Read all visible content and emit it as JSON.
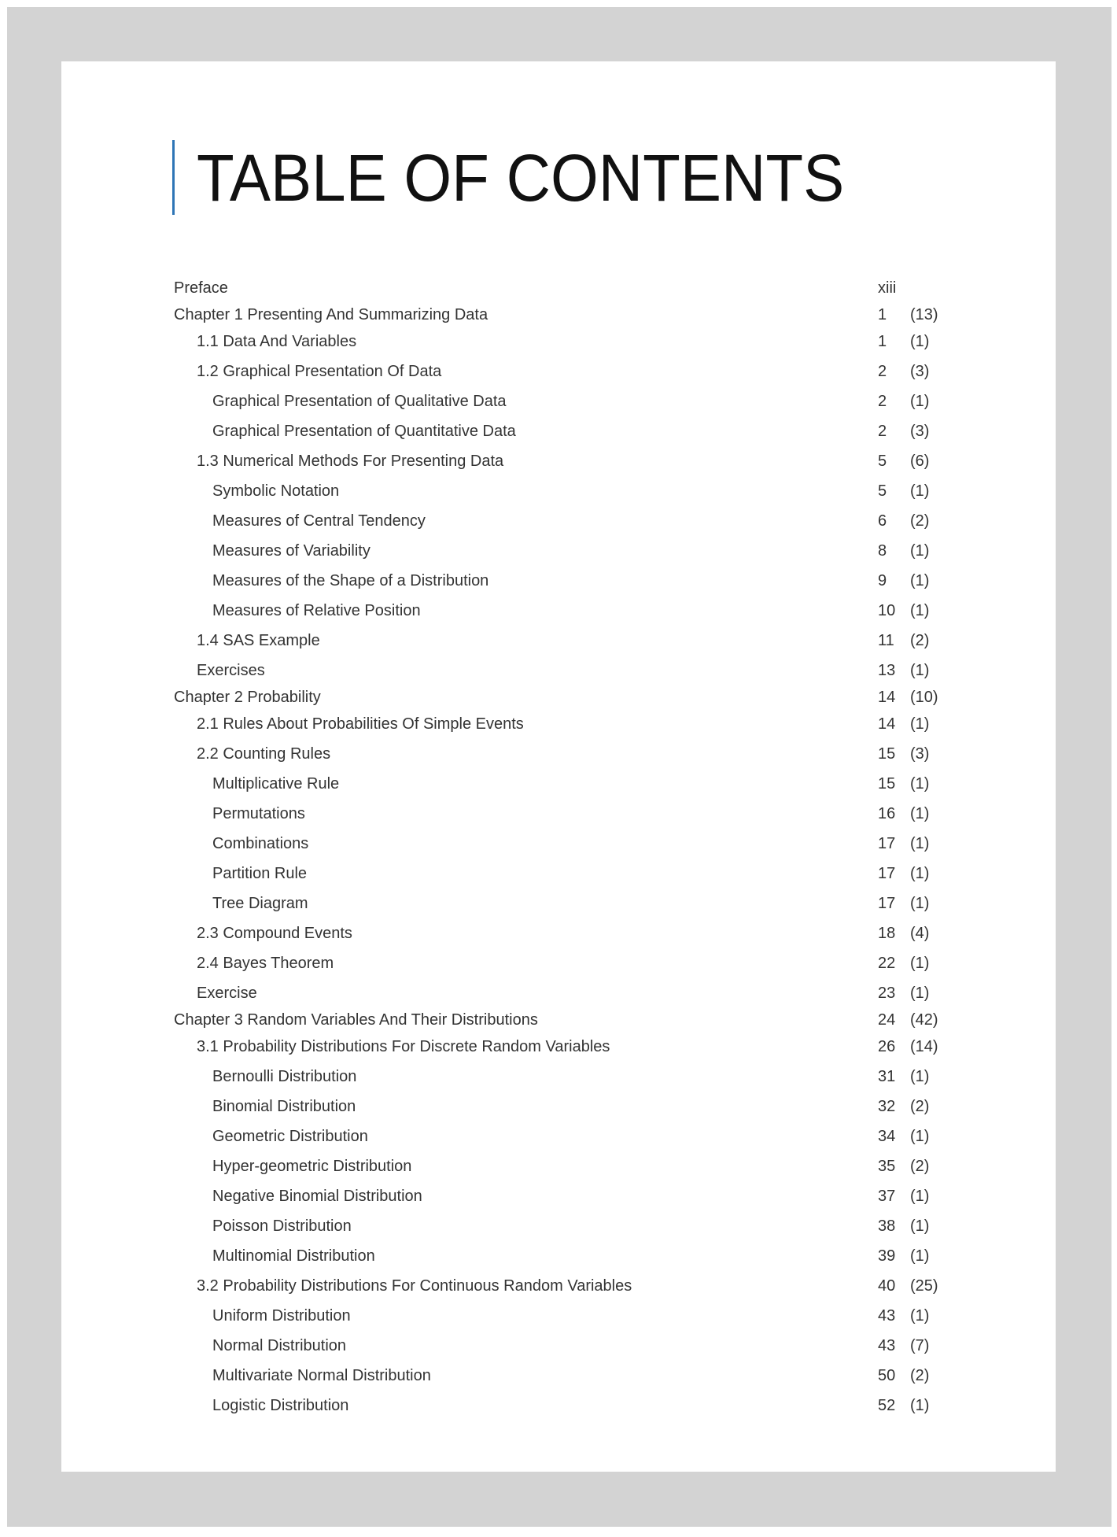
{
  "title": "TABLE OF CONTENTS",
  "accent_color": "#2e75b6",
  "entries": [
    {
      "label": "Preface",
      "page": "xiii",
      "count": "",
      "level": 0
    },
    {
      "label": "Chapter 1 Presenting And Summarizing Data",
      "page": "1",
      "count": "(13)",
      "level": 0
    },
    {
      "label": "1.1 Data And Variables",
      "page": "1",
      "count": "(1)",
      "level": 1
    },
    {
      "label": "1.2 Graphical Presentation Of Data",
      "page": "2",
      "count": "(3)",
      "level": 1
    },
    {
      "label": "Graphical Presentation of Qualitative Data",
      "page": "2",
      "count": "(1)",
      "level": 2
    },
    {
      "label": "Graphical Presentation of Quantitative Data",
      "page": "2",
      "count": "(3)",
      "level": 2
    },
    {
      "label": "1.3 Numerical Methods For Presenting Data",
      "page": "5",
      "count": "(6)",
      "level": 1
    },
    {
      "label": "Symbolic Notation",
      "page": "5",
      "count": "(1)",
      "level": 2
    },
    {
      "label": "Measures of Central Tendency",
      "page": "6",
      "count": "(2)",
      "level": 2
    },
    {
      "label": "Measures of Variability",
      "page": "8",
      "count": "(1)",
      "level": 2
    },
    {
      "label": "Measures of the Shape of a Distribution",
      "page": "9",
      "count": "(1)",
      "level": 2
    },
    {
      "label": "Measures of Relative Position",
      "page": "10",
      "count": "(1)",
      "level": 2
    },
    {
      "label": "1.4 SAS Example",
      "page": "11",
      "count": "(2)",
      "level": 1
    },
    {
      "label": "Exercises",
      "page": "13",
      "count": "(1)",
      "level": 1
    },
    {
      "label": "Chapter 2 Probability",
      "page": "14",
      "count": "(10)",
      "level": 0
    },
    {
      "label": "2.1 Rules About Probabilities Of Simple Events",
      "page": "14",
      "count": "(1)",
      "level": 1
    },
    {
      "label": "2.2 Counting Rules",
      "page": "15",
      "count": "(3)",
      "level": 1
    },
    {
      "label": "Multiplicative Rule",
      "page": "15",
      "count": "(1)",
      "level": 2
    },
    {
      "label": "Permutations",
      "page": "16",
      "count": "(1)",
      "level": 2
    },
    {
      "label": "Combinations",
      "page": "17",
      "count": "(1)",
      "level": 2
    },
    {
      "label": "Partition Rule",
      "page": "17",
      "count": "(1)",
      "level": 2
    },
    {
      "label": "Tree Diagram",
      "page": "17",
      "count": "(1)",
      "level": 2
    },
    {
      "label": "2.3 Compound Events",
      "page": "18",
      "count": "(4)",
      "level": 1
    },
    {
      "label": "2.4 Bayes Theorem",
      "page": "22",
      "count": "(1)",
      "level": 1
    },
    {
      "label": "Exercise",
      "page": "23",
      "count": "(1)",
      "level": 1
    },
    {
      "label": "Chapter 3 Random Variables And Their Distributions",
      "page": "24",
      "count": "(42)",
      "level": 0
    },
    {
      "label": "3.1 Probability Distributions For Discrete Random Variables",
      "page": "26",
      "count": "(14)",
      "level": 1
    },
    {
      "label": "Bernoulli Distribution",
      "page": "31",
      "count": "(1)",
      "level": 2
    },
    {
      "label": "Binomial Distribution",
      "page": "32",
      "count": "(2)",
      "level": 2
    },
    {
      "label": "Geometric Distribution",
      "page": "34",
      "count": "(1)",
      "level": 2
    },
    {
      "label": "Hyper-geometric Distribution",
      "page": "35",
      "count": "(2)",
      "level": 2
    },
    {
      "label": "Negative Binomial Distribution",
      "page": "37",
      "count": "(1)",
      "level": 2
    },
    {
      "label": "Poisson Distribution",
      "page": "38",
      "count": "(1)",
      "level": 2
    },
    {
      "label": "Multinomial Distribution",
      "page": "39",
      "count": "(1)",
      "level": 2
    },
    {
      "label": "3.2 Probability Distributions For Continuous Random Variables",
      "page": "40",
      "count": "(25)",
      "level": 1
    },
    {
      "label": "Uniform Distribution",
      "page": "43",
      "count": "(1)",
      "level": 2
    },
    {
      "label": "Normal Distribution",
      "page": "43",
      "count": "(7)",
      "level": 2
    },
    {
      "label": "Multivariate Normal Distribution",
      "page": "50",
      "count": "(2)",
      "level": 2
    },
    {
      "label": "Logistic Distribution",
      "page": "52",
      "count": "(1)",
      "level": 2
    }
  ]
}
